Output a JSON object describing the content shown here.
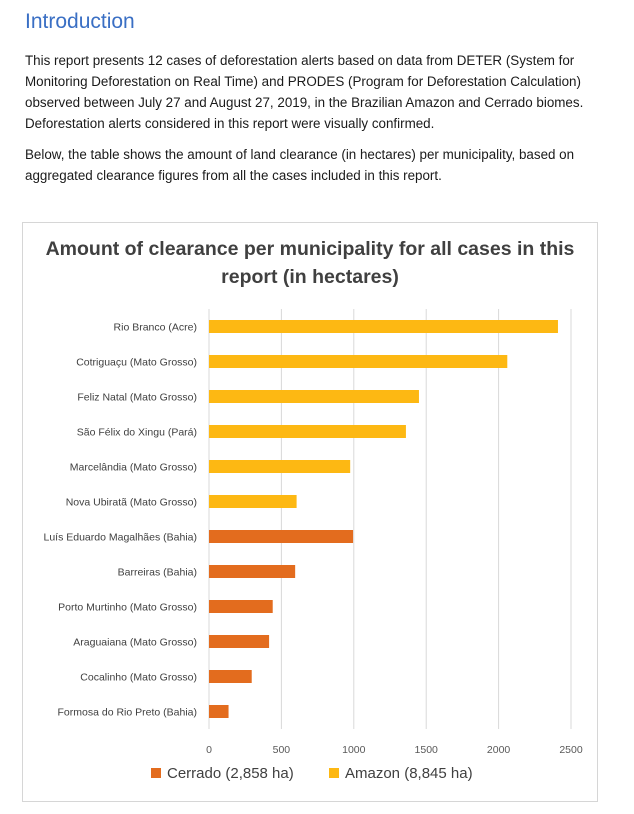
{
  "heading": "Introduction",
  "paragraph1": "This report presents 12 cases of deforestation alerts based on data from DETER (System for Monitoring Deforestation on Real Time) and PRODES (Program for Deforestation Calculation) observed between July 27 and August 27, 2019, in the Brazilian Amazon and Cerrado biomes. Deforestation alerts considered in this report were visually confirmed.",
  "paragraph2": "Below, the table shows the amount of land clearance (in hectares) per municipality, based on aggregated clearance figures from all the cases included in this report.",
  "colors": {
    "cerrado": "#e36c1e",
    "amazon": "#fdb813",
    "heading": "#3a6fc4"
  },
  "chart_data": {
    "type": "bar",
    "orientation": "horizontal",
    "title": "Amount of clearance per municipality for all cases in this report (in hectares)",
    "xlabel": "",
    "ylabel": "",
    "xlim": [
      0,
      2500
    ],
    "xticks": [
      0,
      500,
      1000,
      1500,
      2000,
      2500
    ],
    "grid": true,
    "legend_position": "bottom",
    "legend": [
      {
        "label": "Cerrado (2,858 ha)",
        "series": "cerrado"
      },
      {
        "label": "Amazon (8,845 ha)",
        "series": "amazon"
      }
    ],
    "bars": [
      {
        "category": "Rio Branco (Acre)",
        "value": 2410,
        "series": "amazon"
      },
      {
        "category": "Cotriguaçu (Mato Grosso)",
        "value": 2060,
        "series": "amazon"
      },
      {
        "category": "Feliz Natal (Mato Grosso)",
        "value": 1450,
        "series": "amazon"
      },
      {
        "category": "São Félix do Xingu (Pará)",
        "value": 1360,
        "series": "amazon"
      },
      {
        "category": "Marcelândia (Mato Grosso)",
        "value": 975,
        "series": "amazon"
      },
      {
        "category": "Nova Ubiratã (Mato Grosso)",
        "value": 605,
        "series": "amazon"
      },
      {
        "category": "Luís Eduardo Magalhães (Bahia)",
        "value": 995,
        "series": "cerrado"
      },
      {
        "category": "Barreiras (Bahia)",
        "value": 595,
        "series": "cerrado"
      },
      {
        "category": "Porto Murtinho (Mato Grosso)",
        "value": 440,
        "series": "cerrado"
      },
      {
        "category": "Araguaiana (Mato Grosso)",
        "value": 415,
        "series": "cerrado"
      },
      {
        "category": "Cocalinho (Mato Grosso)",
        "value": 295,
        "series": "cerrado"
      },
      {
        "category": "Formosa do Rio Preto (Bahia)",
        "value": 135,
        "series": "cerrado"
      }
    ]
  }
}
